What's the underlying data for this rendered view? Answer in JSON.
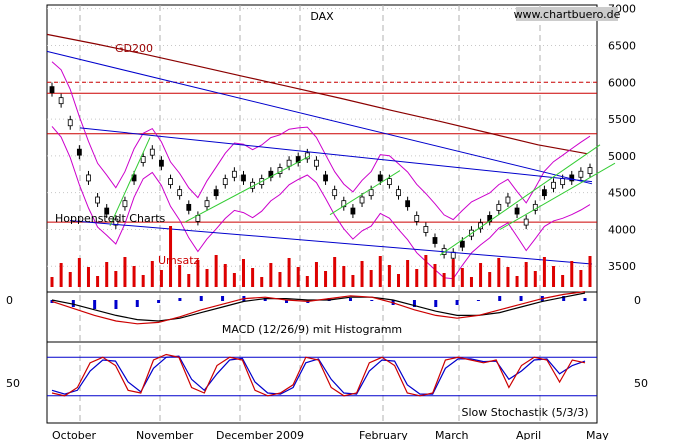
{
  "chart_data": {
    "type": "line",
    "title": "DAX",
    "source": "www.chartbuero.de",
    "credit": "Hoppenstedt Charts",
    "x_ticks": [
      "October",
      "November",
      "December",
      "2009",
      "February",
      "March",
      "April",
      "May"
    ],
    "main_panel": {
      "y_ticks": [
        3500,
        4000,
        4500,
        5000,
        5500,
        6000,
        6500,
        7000
      ],
      "y_range": [
        3150,
        7050
      ],
      "moving_average_label": "GD200",
      "moving_average": [
        6650,
        6520,
        6380,
        6230,
        6080,
        5930,
        5780,
        5620,
        5470,
        5310,
        5150,
        5030
      ],
      "horizontal_lines": [
        {
          "value": 6000,
          "style": "dashed",
          "color": "#cc0000"
        },
        {
          "value": 5850,
          "style": "solid",
          "color": "#cc0000"
        },
        {
          "value": 5300,
          "style": "solid",
          "color": "#cc0000"
        },
        {
          "value": 4100,
          "style": "solid",
          "color": "#cc0000"
        }
      ],
      "price": [
        5900,
        5750,
        5450,
        5050,
        4700,
        4400,
        4250,
        4100,
        4350,
        4700,
        4950,
        5050,
        4900,
        4650,
        4500,
        4300,
        4150,
        4350,
        4500,
        4650,
        4750,
        4700,
        4600,
        4650,
        4750,
        4800,
        4900,
        4950,
        5000,
        4900,
        4700,
        4500,
        4350,
        4250,
        4400,
        4500,
        4700,
        4650,
        4500,
        4350,
        4150,
        4000,
        3850,
        3700,
        3650,
        3800,
        3950,
        4050,
        4150,
        4300,
        4400,
        4250,
        4100,
        4300,
        4500,
        4600,
        4650,
        4700,
        4750,
        4800
      ],
      "turnover_label": "Umsatz"
    },
    "macd_panel": {
      "label": "MACD (12/26/9) mit Histogramm",
      "y_ticks": [
        0
      ],
      "macd": [
        -0.05,
        -0.3,
        -0.55,
        -0.75,
        -0.85,
        -0.8,
        -0.6,
        -0.35,
        -0.15,
        0.05,
        0.1,
        0.0,
        -0.05,
        0.05,
        0.15,
        0.1,
        -0.1,
        -0.35,
        -0.55,
        -0.65,
        -0.55,
        -0.35,
        -0.15,
        0.05,
        0.2,
        0.3
      ],
      "signal": [
        0.0,
        -0.15,
        -0.35,
        -0.55,
        -0.7,
        -0.75,
        -0.65,
        -0.45,
        -0.25,
        -0.05,
        0.05,
        0.05,
        0.0,
        0.0,
        0.1,
        0.1,
        0.0,
        -0.2,
        -0.4,
        -0.55,
        -0.55,
        -0.45,
        -0.25,
        -0.05,
        0.1,
        0.25
      ]
    },
    "stochastic_panel": {
      "label": "Slow Stochastik (5/3/3)",
      "y_ticks": [
        50
      ],
      "upper_line": 85,
      "lower_line": 15,
      "k": [
        20,
        15,
        30,
        75,
        85,
        70,
        25,
        20,
        80,
        90,
        85,
        30,
        20,
        70,
        85,
        80,
        25,
        15,
        20,
        35,
        85,
        80,
        30,
        15,
        20,
        75,
        85,
        70,
        20,
        15,
        20,
        80,
        85,
        80,
        75,
        80,
        30,
        70,
        85,
        80,
        40,
        80,
        75
      ],
      "d": [
        25,
        18,
        25,
        60,
        80,
        78,
        40,
        22,
        65,
        85,
        87,
        45,
        25,
        55,
        80,
        83,
        40,
        20,
        18,
        30,
        75,
        82,
        45,
        20,
        18,
        60,
        80,
        78,
        35,
        18,
        18,
        65,
        82,
        82,
        77,
        78,
        45,
        60,
        80,
        82,
        55,
        70,
        78
      ]
    }
  }
}
